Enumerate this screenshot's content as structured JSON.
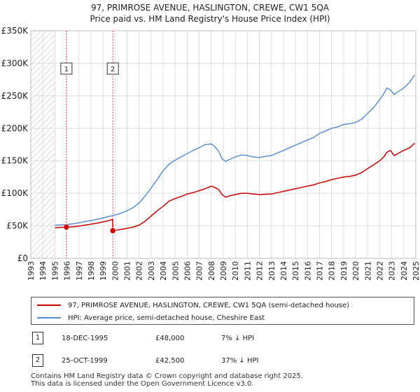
{
  "title_line1": "97, PRIMROSE AVENUE, HASLINGTON, CREWE, CW1 5QA",
  "title_line2": "Price paid vs. HM Land Registry's House Price Index (HPI)",
  "colors": {
    "property": "#cc0000",
    "hpi": "#5b8fd2",
    "grid": "#dddddd",
    "hatch": "#d8d8d8",
    "marker_line": "#cc0000"
  },
  "chart_data": {
    "type": "line",
    "title": "97, PRIMROSE AVENUE, HASLINGTON, CREWE, CW1 5QA - Price paid vs. HM Land Registry's House Price Index (HPI)",
    "xlabel": "",
    "ylabel": "",
    "xlim": [
      1993,
      2025
    ],
    "ylim": [
      0,
      350000
    ],
    "grid": true,
    "x_ticks": [
      1993,
      1994,
      1995,
      1996,
      1997,
      1998,
      1999,
      2000,
      2001,
      2002,
      2003,
      2004,
      2005,
      2006,
      2007,
      2008,
      2009,
      2010,
      2011,
      2012,
      2013,
      2014,
      2015,
      2016,
      2017,
      2018,
      2019,
      2020,
      2021,
      2022,
      2023,
      2024,
      2025
    ],
    "y_ticks": [
      {
        "value": 0,
        "label": "£0"
      },
      {
        "value": 50000,
        "label": "£50K"
      },
      {
        "value": 100000,
        "label": "£100K"
      },
      {
        "value": 150000,
        "label": "£150K"
      },
      {
        "value": 200000,
        "label": "£200K"
      },
      {
        "value": 250000,
        "label": "£250K"
      },
      {
        "value": 300000,
        "label": "£300K"
      },
      {
        "value": 350000,
        "label": "£350K"
      }
    ],
    "shaded_region": {
      "x_start": 1993,
      "x_end": 1995.0
    },
    "series": [
      {
        "name": "97, PRIMROSE AVENUE, HASLINGTON, CREWE, CW1 5QA (semi-detached house)",
        "x": [
          1995.0,
          1995.5,
          1995.96,
          1996.5,
          1997.0,
          1997.5,
          1998.0,
          1998.5,
          1999.0,
          1999.5,
          1999.8,
          1999.82,
          2000.0,
          2000.5,
          2001.0,
          2001.5,
          2002.0,
          2002.5,
          2003.0,
          2003.5,
          2004.0,
          2004.5,
          2005.0,
          2005.5,
          2006.0,
          2006.5,
          2007.0,
          2007.5,
          2008.0,
          2008.3,
          2008.6,
          2008.9,
          2009.2,
          2009.5,
          2010.0,
          2010.5,
          2011.0,
          2011.5,
          2012.0,
          2012.5,
          2013.0,
          2013.5,
          2014.0,
          2014.5,
          2015.0,
          2015.5,
          2016.0,
          2016.5,
          2017.0,
          2017.5,
          2018.0,
          2018.5,
          2019.0,
          2019.5,
          2020.0,
          2020.5,
          2021.0,
          2021.5,
          2022.0,
          2022.3,
          2022.6,
          2022.9,
          2023.2,
          2023.5,
          2024.0,
          2024.5,
          2024.9
        ],
        "y": [
          47000,
          47500,
          48000,
          48500,
          49500,
          51000,
          52500,
          54000,
          56000,
          58000,
          60000,
          42500,
          43000,
          44500,
          46000,
          48000,
          51000,
          57000,
          65000,
          73000,
          80000,
          88000,
          92000,
          95000,
          99000,
          101000,
          104000,
          107000,
          111000,
          109000,
          106000,
          98000,
          94000,
          96000,
          98000,
          100000,
          100000,
          99000,
          98000,
          98500,
          99000,
          101000,
          103000,
          105000,
          107000,
          109000,
          111000,
          113000,
          116000,
          118000,
          121000,
          123000,
          125000,
          126000,
          128000,
          132000,
          138000,
          144000,
          150000,
          155000,
          163000,
          166000,
          158000,
          161000,
          166000,
          170000,
          177000
        ]
      },
      {
        "name": "HPI: Average price, semi-detached house, Cheshire East",
        "x": [
          1995.0,
          1995.5,
          1996.0,
          1996.5,
          1997.0,
          1997.5,
          1998.0,
          1998.5,
          1999.0,
          1999.5,
          2000.0,
          2000.5,
          2001.0,
          2001.5,
          2002.0,
          2002.5,
          2003.0,
          2003.5,
          2004.0,
          2004.5,
          2005.0,
          2005.5,
          2006.0,
          2006.5,
          2007.0,
          2007.5,
          2008.0,
          2008.3,
          2008.6,
          2008.9,
          2009.2,
          2009.5,
          2010.0,
          2010.5,
          2011.0,
          2011.5,
          2012.0,
          2012.5,
          2013.0,
          2013.5,
          2014.0,
          2014.5,
          2015.0,
          2015.5,
          2016.0,
          2016.5,
          2017.0,
          2017.5,
          2018.0,
          2018.5,
          2019.0,
          2019.5,
          2020.0,
          2020.5,
          2021.0,
          2021.5,
          2022.0,
          2022.3,
          2022.6,
          2022.9,
          2023.2,
          2023.5,
          2024.0,
          2024.5,
          2024.9
        ],
        "y": [
          51000,
          51500,
          52000,
          53000,
          54500,
          56500,
          58000,
          60000,
          62000,
          64500,
          66500,
          69500,
          73000,
          78000,
          85000,
          96000,
          108000,
          121000,
          135000,
          145000,
          151000,
          156000,
          161000,
          166000,
          170000,
          175000,
          176000,
          172000,
          165000,
          153000,
          149000,
          152000,
          156000,
          159000,
          158000,
          156000,
          155000,
          157000,
          158000,
          162000,
          166000,
          170000,
          174000,
          178000,
          182000,
          186000,
          192000,
          196000,
          200000,
          202000,
          206000,
          207000,
          209000,
          214000,
          223000,
          232000,
          244000,
          252000,
          262000,
          259000,
          252000,
          256000,
          262000,
          271000,
          282000
        ]
      }
    ],
    "transactions": [
      {
        "label": "1",
        "x": 1995.96,
        "y": 48000
      },
      {
        "label": "2",
        "x": 1999.82,
        "y": 42500
      }
    ]
  },
  "legend": {
    "property_label": "97, PRIMROSE AVENUE, HASLINGTON, CREWE, CW1 5QA (semi-detached house)",
    "hpi_label": "HPI: Average price, semi-detached house, Cheshire East"
  },
  "transactions_table": [
    {
      "id": "1",
      "date": "18-DEC-1995",
      "price": "£48,000",
      "hpi": "7% ↓ HPI"
    },
    {
      "id": "2",
      "date": "25-OCT-1999",
      "price": "£42,500",
      "hpi": "37% ↓ HPI"
    }
  ],
  "footer": {
    "line1": "Contains HM Land Registry data © Crown copyright and database right 2025.",
    "line2": "This data is licensed under the Open Government Licence v3.0."
  }
}
